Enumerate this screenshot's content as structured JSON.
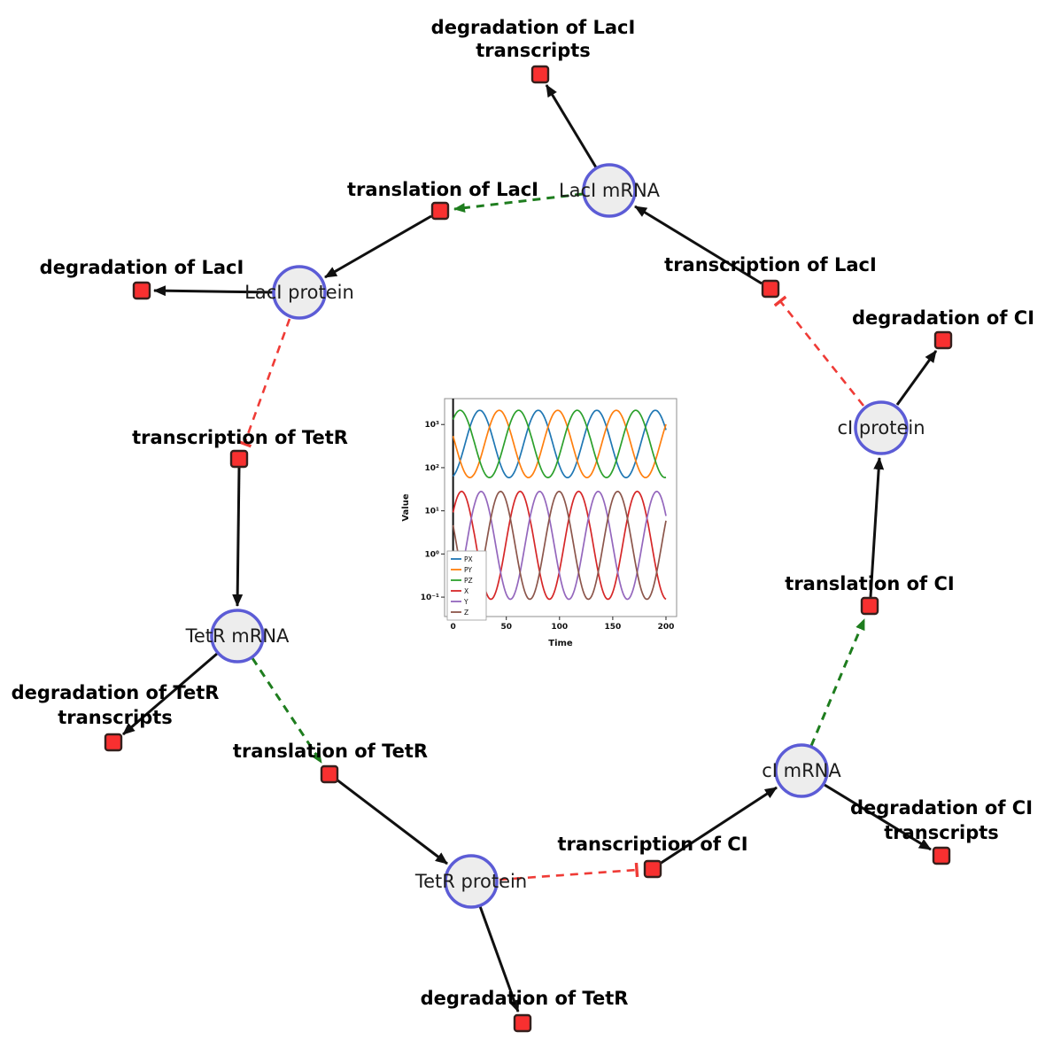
{
  "diagram": {
    "species": [
      {
        "id": "laci-mrna",
        "label": "LacI mRNA"
      },
      {
        "id": "laci-protein",
        "label": "LacI protein"
      },
      {
        "id": "tetr-mrna",
        "label": "TetR mRNA"
      },
      {
        "id": "tetr-protein",
        "label": "TetR protein"
      },
      {
        "id": "ci-mrna",
        "label": "cI mRNA"
      },
      {
        "id": "ci-protein",
        "label": "cI protein"
      }
    ],
    "reactions": [
      {
        "id": "degradation-laci-transcripts",
        "label": "degradation of LacI",
        "label2": "transcripts"
      },
      {
        "id": "translation-laci",
        "label": "translation of LacI"
      },
      {
        "id": "degradation-laci",
        "label": "degradation of LacI"
      },
      {
        "id": "transcription-laci",
        "label": "transcription of LacI"
      },
      {
        "id": "degradation-ci",
        "label": "degradation of CI"
      },
      {
        "id": "transcription-tetr",
        "label": "transcription of TetR"
      },
      {
        "id": "translation-ci",
        "label": "translation of CI"
      },
      {
        "id": "degradation-tetr-transcripts",
        "label": "degradation of TetR",
        "label2": "transcripts"
      },
      {
        "id": "translation-tetr",
        "label": "translation of TetR"
      },
      {
        "id": "transcription-ci",
        "label": "transcription of CI"
      },
      {
        "id": "degradation-ci-transcripts",
        "label": "degradation of CI",
        "label2": "transcripts"
      },
      {
        "id": "degradation-tetr",
        "label": "degradation of TetR"
      }
    ],
    "colors": {
      "species_fill": "#ededed",
      "species_stroke": "#5c5cd6",
      "reaction_fill": "#f83030",
      "reaction_stroke": "#36201d",
      "edge_black": "#101010",
      "activation_green": "#1e7d1e",
      "inhibition_red": "#ef3b36"
    }
  },
  "chart_data": {
    "type": "line",
    "xlabel": "Time",
    "ylabel": "Value",
    "x_ticks": [
      0,
      50,
      100,
      150,
      200
    ],
    "x_range_data": [
      0,
      200
    ],
    "xlim": [
      -8,
      210
    ],
    "y_scale": "log",
    "y_tick_exponents": [
      -1,
      0,
      1,
      2,
      3
    ],
    "y_tick_labels": [
      "10⁻¹",
      "10⁰",
      "10¹",
      "10²",
      "10³"
    ],
    "log_ylim": [
      -1.45,
      3.6
    ],
    "grid": false,
    "legend_position": "lower left",
    "series": [
      {
        "name": "PX",
        "color": "#1f77b4",
        "log10_mean": 2.55,
        "log10_amp": 0.78,
        "period": 55,
        "peak_t": 25.0
      },
      {
        "name": "PY",
        "color": "#ff7f0e",
        "log10_mean": 2.55,
        "log10_amp": 0.78,
        "period": 55,
        "peak_t": 43.3
      },
      {
        "name": "PZ",
        "color": "#2ca02c",
        "log10_mean": 2.55,
        "log10_amp": 0.78,
        "period": 55,
        "peak_t": 61.6
      },
      {
        "name": "X",
        "color": "#d62728",
        "log10_mean": 0.2,
        "log10_amp": 1.25,
        "period": 55,
        "peak_t": 63.0
      },
      {
        "name": "Y",
        "color": "#9467bd",
        "log10_mean": 0.2,
        "log10_amp": 1.25,
        "period": 55,
        "peak_t": 81.3
      },
      {
        "name": "Z",
        "color": "#8c564b",
        "log10_mean": 0.2,
        "log10_amp": 1.25,
        "period": 55,
        "peak_t": 44.6
      }
    ]
  }
}
